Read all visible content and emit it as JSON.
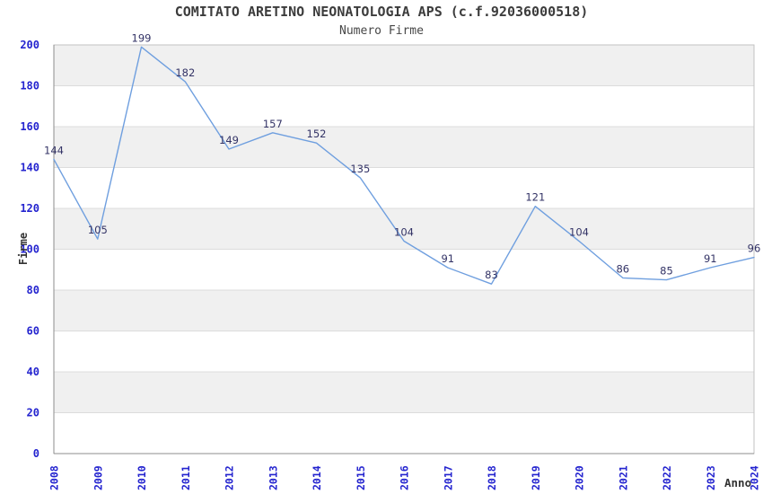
{
  "chart_data": {
    "type": "line",
    "title": "COMITATO ARETINO NEONATOLOGIA APS (c.f.92036000518)",
    "subtitle": "Numero Firme",
    "xlabel": "Anno",
    "ylabel": "Firme",
    "x": [
      "2008",
      "2009",
      "2010",
      "2011",
      "2012",
      "2013",
      "2014",
      "2015",
      "2016",
      "2017",
      "2018",
      "2019",
      "2020",
      "2021",
      "2022",
      "2023",
      "2024"
    ],
    "series": [
      {
        "name": "Numero Firme",
        "values": [
          144,
          105,
          199,
          182,
          149,
          157,
          152,
          135,
          104,
          91,
          83,
          121,
          104,
          86,
          85,
          91,
          96
        ]
      }
    ],
    "ylim": [
      0,
      200
    ],
    "ytick_step": 20,
    "grid": "horizontal-with-alternating-bands",
    "legend_position": "none",
    "point_labels_visible": true,
    "colors": {
      "line": "#6f9fdf",
      "tick_label": "#2424cf",
      "point_label": "#333366",
      "band_gray": "#f0f0f0",
      "band_white": "#ffffff",
      "gridline": "#dcdcdc",
      "border": "#c2c2c2",
      "axis": "#8c8c8c",
      "title_text": "#3c3c3c"
    }
  }
}
